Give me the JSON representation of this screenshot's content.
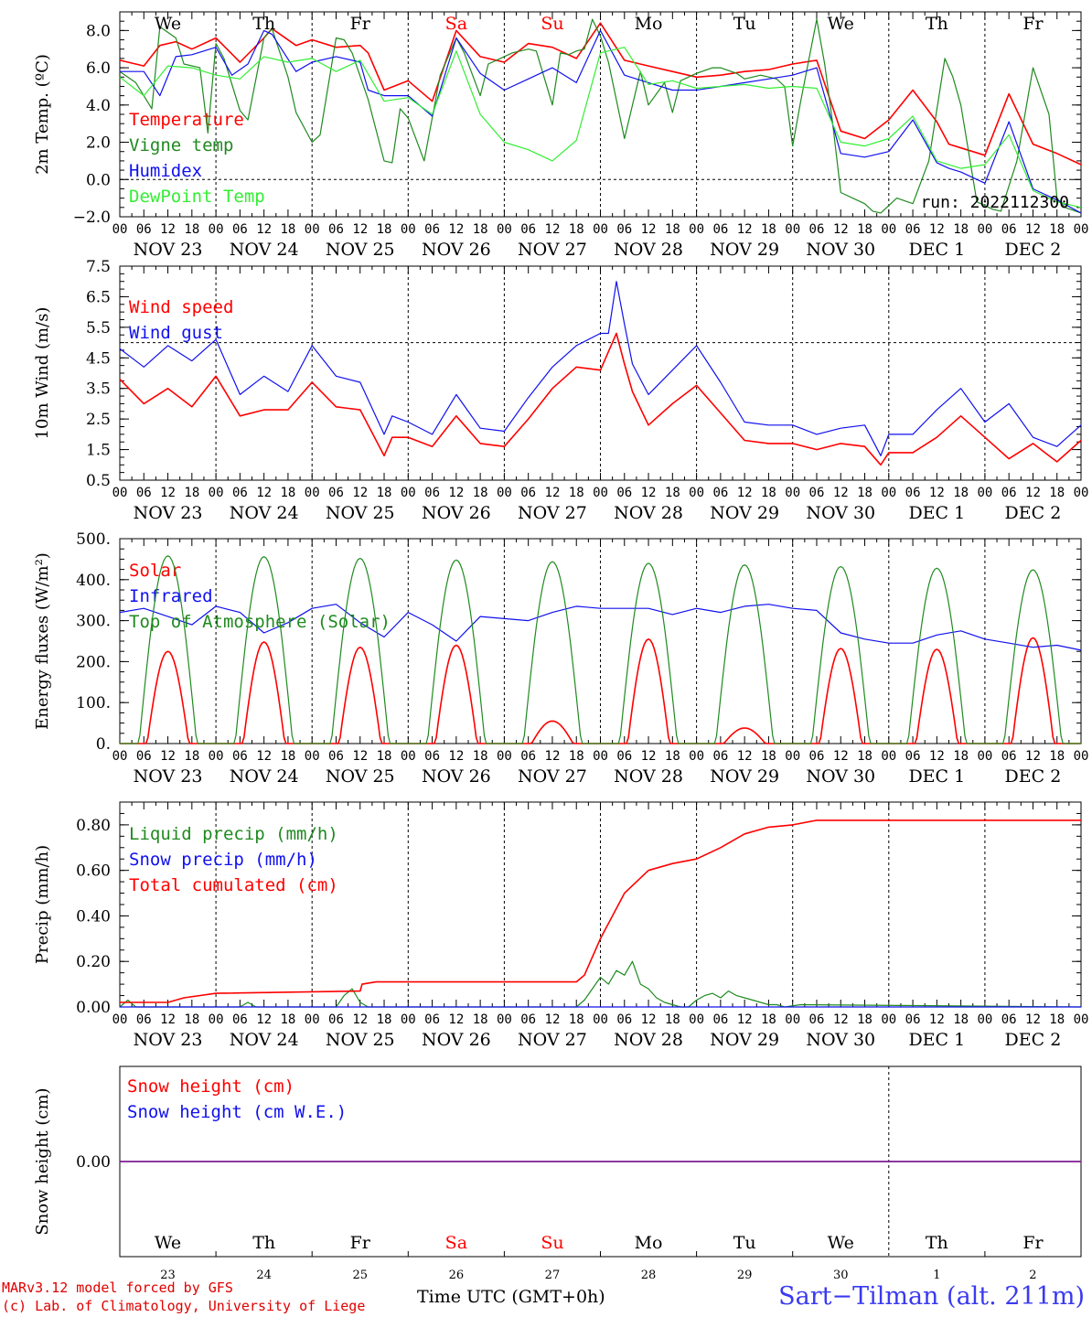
{
  "colors": {
    "red": "#ff0000",
    "darkgreen": "#1f8a1f",
    "blue": "#1010ee",
    "lightgreen": "#33ee33",
    "purple": "#7a2aa0",
    "weekend": "#ff0000"
  },
  "days": [
    "We",
    "Th",
    "Fr",
    "Sa",
    "Su",
    "Mo",
    "Tu",
    "We",
    "Th",
    "Fr"
  ],
  "weekend_days": [
    3,
    4
  ],
  "dates": [
    "NOV 23",
    "NOV 24",
    "NOV 25",
    "NOV 26",
    "NOV 27",
    "NOV 28",
    "NOV 29",
    "NOV 30",
    "DEC  1",
    "DEC  2"
  ],
  "day_numbers": [
    "23",
    "24",
    "25",
    "26",
    "27",
    "28",
    "29",
    "30",
    "1",
    "2"
  ],
  "hour_labels": [
    "00",
    "06",
    "12",
    "18"
  ],
  "final_hour_label": "00",
  "footer": {
    "credit_line1": "MARv3.12 model forced by GFS",
    "credit_line2": "(c) Lab. of Climatology, University of Liege",
    "axis_title": "Time UTC (GMT+0h)",
    "station": "Sart−Tilman (alt. 211m)"
  },
  "chart_data": [
    {
      "type": "line",
      "ylabel": "2m Temp. (ºC)",
      "ylim": [
        -2,
        9
      ],
      "yticks": [
        -2,
        0,
        2,
        4,
        6,
        8
      ],
      "yticklabels": [
        "−2.0",
        "0.0",
        "2.0",
        "4.0",
        "6.0",
        "8.0"
      ],
      "dashed_y": 0,
      "run_label": "run: 2022112300",
      "x_unit": "hours since 2022-11-23 00 UTC",
      "series": [
        {
          "name": "Temperature",
          "color": "red",
          "x": [
            0,
            6,
            10,
            14,
            18,
            24,
            30,
            36,
            38,
            44,
            48,
            54,
            60,
            62,
            66,
            72,
            78,
            84,
            90,
            96,
            102,
            108,
            114,
            120,
            126,
            132,
            138,
            144,
            150,
            156,
            162,
            168,
            174,
            180,
            186,
            192,
            198,
            204,
            207,
            210,
            216,
            222,
            228,
            234,
            240
          ],
          "y": [
            6.4,
            6.1,
            7.2,
            7.4,
            7.0,
            7.6,
            6.3,
            7.6,
            8.1,
            7.2,
            7.5,
            7.1,
            7.2,
            6.8,
            4.8,
            5.3,
            4.2,
            8.0,
            6.6,
            6.3,
            7.3,
            7.1,
            6.5,
            8.4,
            6.4,
            6.1,
            5.8,
            5.5,
            5.6,
            5.8,
            5.9,
            6.2,
            6.4,
            2.6,
            2.2,
            3.2,
            4.8,
            3.1,
            1.9,
            1.7,
            1.3,
            4.6,
            1.9,
            1.4,
            0.8
          ]
        },
        {
          "name": "Vigne temp",
          "color": "darkgreen",
          "x": [
            0,
            4,
            8,
            10,
            14,
            16,
            20,
            22,
            24,
            26,
            30,
            32,
            36,
            38,
            42,
            44,
            48,
            50,
            54,
            56,
            58,
            62,
            66,
            68,
            70,
            72,
            76,
            80,
            84,
            86,
            90,
            92,
            96,
            98,
            102,
            104,
            108,
            110,
            112,
            114,
            116,
            118,
            120,
            122,
            126,
            130,
            132,
            136,
            138,
            140,
            144,
            148,
            150,
            154,
            156,
            160,
            164,
            166,
            168,
            170,
            174,
            176,
            178,
            180,
            184,
            186,
            188,
            190,
            194,
            198,
            202,
            206,
            208,
            210,
            214,
            218,
            220,
            224,
            228,
            232,
            234,
            236,
            240
          ],
          "y": [
            5.8,
            5.2,
            3.8,
            8.2,
            7.6,
            6.2,
            6.0,
            2.5,
            7.3,
            6.5,
            3.7,
            3.2,
            7.6,
            8.1,
            5.5,
            3.6,
            2.0,
            2.4,
            7.6,
            7.5,
            6.8,
            4.3,
            1.0,
            0.9,
            3.8,
            3.3,
            1.0,
            5.6,
            7.6,
            6.8,
            4.5,
            6.2,
            6.6,
            6.8,
            7.0,
            6.9,
            4.0,
            6.8,
            6.7,
            6.9,
            7.0,
            8.6,
            7.7,
            6.3,
            2.2,
            5.8,
            4.0,
            5.2,
            3.6,
            5.3,
            5.7,
            6.0,
            6.0,
            5.7,
            5.4,
            5.6,
            5.4,
            5.0,
            1.8,
            4.2,
            8.6,
            6.2,
            3.0,
            -0.7,
            -1.1,
            -1.3,
            -1.7,
            -1.8,
            -1.0,
            -1.3,
            1.0,
            6.5,
            5.5,
            4.0,
            -1.2,
            -1.6,
            -1.7,
            1.0,
            6.0,
            3.5,
            -1.0,
            -1.5,
            -1.8
          ]
        },
        {
          "name": "Humidex",
          "color": "blue",
          "x": [
            0,
            6,
            10,
            14,
            18,
            24,
            28,
            32,
            36,
            38,
            44,
            48,
            54,
            60,
            62,
            66,
            72,
            78,
            84,
            90,
            96,
            102,
            108,
            114,
            120,
            126,
            132,
            138,
            144,
            150,
            156,
            162,
            168,
            174,
            180,
            186,
            192,
            198,
            204,
            207,
            210,
            216,
            222,
            228,
            234,
            240
          ],
          "y": [
            5.8,
            5.8,
            4.5,
            6.6,
            6.7,
            7.1,
            5.6,
            6.2,
            8.0,
            7.8,
            5.8,
            6.3,
            6.6,
            6.3,
            4.8,
            4.5,
            4.5,
            3.4,
            7.6,
            5.7,
            4.8,
            5.4,
            6.0,
            5.2,
            8.0,
            5.6,
            5.2,
            4.8,
            4.8,
            5.0,
            5.2,
            5.4,
            5.6,
            6.0,
            1.4,
            1.2,
            1.5,
            3.2,
            0.9,
            0.6,
            0.4,
            -0.2,
            3.1,
            -0.5,
            -1.1,
            -1.8
          ]
        },
        {
          "name": "DewPoint Temp",
          "color": "lightgreen",
          "x": [
            0,
            6,
            12,
            18,
            24,
            30,
            36,
            42,
            48,
            54,
            60,
            66,
            72,
            78,
            84,
            90,
            96,
            102,
            108,
            114,
            120,
            126,
            132,
            138,
            144,
            150,
            156,
            162,
            168,
            174,
            180,
            186,
            192,
            198,
            204,
            210,
            216,
            222,
            228,
            234,
            240
          ],
          "y": [
            5.5,
            4.5,
            6.1,
            6.0,
            5.6,
            5.4,
            6.6,
            6.3,
            6.5,
            5.8,
            6.4,
            4.2,
            4.4,
            3.5,
            6.9,
            3.5,
            2.0,
            1.6,
            1.0,
            2.1,
            6.8,
            7.1,
            5.1,
            5.3,
            4.9,
            5.0,
            5.1,
            4.9,
            5.0,
            4.9,
            2.0,
            1.8,
            2.2,
            3.4,
            1.0,
            0.6,
            0.8,
            2.4,
            -0.6,
            -1.2,
            -1.5
          ]
        }
      ]
    },
    {
      "type": "line",
      "ylabel": "10m Wind (m/s)",
      "ylim": [
        0.5,
        7.5
      ],
      "yticks": [
        0.5,
        1.5,
        2.5,
        3.5,
        4.5,
        5.5,
        6.5,
        7.5
      ],
      "yticklabels": [
        "0.5",
        "1.5",
        "2.5",
        "3.5",
        "4.5",
        "5.5",
        "6.5",
        "7.5"
      ],
      "dashed_y": 5.0,
      "x_unit": "hours since 2022-11-23 00 UTC",
      "series": [
        {
          "name": "Wind speed",
          "color": "red",
          "x": [
            0,
            6,
            12,
            18,
            24,
            30,
            36,
            42,
            48,
            54,
            60,
            66,
            68,
            72,
            78,
            84,
            90,
            96,
            102,
            108,
            114,
            120,
            124,
            126,
            128,
            132,
            138,
            144,
            150,
            156,
            162,
            168,
            174,
            180,
            186,
            190,
            192,
            198,
            204,
            210,
            216,
            222,
            228,
            234,
            240
          ],
          "y": [
            3.8,
            3.0,
            3.5,
            2.9,
            3.9,
            2.6,
            2.8,
            2.8,
            3.7,
            2.9,
            2.8,
            1.3,
            1.9,
            1.9,
            1.6,
            2.6,
            1.7,
            1.6,
            2.5,
            3.5,
            4.2,
            4.1,
            5.3,
            4.3,
            3.4,
            2.3,
            3.0,
            3.6,
            2.7,
            1.8,
            1.7,
            1.7,
            1.5,
            1.7,
            1.6,
            1.0,
            1.4,
            1.4,
            1.9,
            2.6,
            1.9,
            1.2,
            1.7,
            1.1,
            1.8
          ]
        },
        {
          "name": "Wind gust",
          "color": "blue",
          "x": [
            0,
            6,
            12,
            18,
            24,
            30,
            36,
            42,
            48,
            54,
            60,
            66,
            68,
            72,
            78,
            84,
            90,
            96,
            102,
            108,
            114,
            120,
            122,
            124,
            126,
            128,
            132,
            138,
            144,
            150,
            156,
            162,
            168,
            174,
            180,
            186,
            190,
            192,
            198,
            204,
            210,
            216,
            222,
            228,
            234,
            240
          ],
          "y": [
            4.8,
            4.2,
            4.9,
            4.4,
            5.1,
            3.3,
            3.9,
            3.4,
            4.9,
            3.9,
            3.7,
            2.0,
            2.6,
            2.4,
            2.0,
            3.3,
            2.2,
            2.1,
            3.2,
            4.2,
            4.9,
            5.3,
            5.3,
            7.0,
            5.6,
            4.3,
            3.3,
            4.1,
            4.9,
            3.7,
            2.4,
            2.3,
            2.3,
            2.0,
            2.2,
            2.3,
            1.3,
            2.0,
            2.0,
            2.8,
            3.5,
            2.4,
            3.0,
            1.9,
            1.6,
            2.3
          ]
        }
      ]
    },
    {
      "type": "line",
      "ylabel": "Energy fluxes (W/m²)",
      "ylim": [
        0,
        500
      ],
      "yticks": [
        0,
        100,
        200,
        300,
        400,
        500
      ],
      "yticklabels": [
        "0.",
        "100.",
        "200.",
        "300.",
        "400.",
        "500."
      ],
      "x_unit": "hours since 2022-11-23 00 UTC",
      "series": [
        {
          "name": "Solar",
          "color": "red",
          "daily_peaks": [
            225,
            248,
            235,
            240,
            55,
            255,
            38,
            232,
            230,
            258
          ]
        },
        {
          "name": "Infrared",
          "color": "blue",
          "x": [
            0,
            6,
            12,
            18,
            24,
            30,
            36,
            42,
            48,
            54,
            60,
            66,
            72,
            78,
            84,
            90,
            96,
            102,
            108,
            114,
            120,
            126,
            132,
            138,
            144,
            150,
            156,
            162,
            168,
            174,
            180,
            186,
            192,
            198,
            204,
            210,
            216,
            222,
            228,
            234,
            240
          ],
          "y": [
            320,
            330,
            310,
            290,
            335,
            320,
            270,
            295,
            330,
            340,
            295,
            260,
            320,
            290,
            250,
            310,
            305,
            300,
            320,
            335,
            330,
            330,
            330,
            315,
            330,
            320,
            335,
            340,
            330,
            325,
            270,
            255,
            245,
            245,
            265,
            275,
            255,
            245,
            235,
            240,
            228
          ]
        },
        {
          "name": "Top of Atmosphere (Solar)",
          "color": "darkgreen",
          "daily_peaks": [
            458,
            456,
            452,
            448,
            444,
            440,
            436,
            432,
            428,
            424
          ]
        }
      ]
    },
    {
      "type": "line",
      "ylabel": "Precip (mm/h)",
      "ylim": [
        0,
        0.9
      ],
      "yticks": [
        0,
        0.2,
        0.4,
        0.6,
        0.8
      ],
      "yticklabels": [
        "0.00",
        "0.20",
        "0.40",
        "0.60",
        "0.80"
      ],
      "x_unit": "hours since 2022-11-23 00 UTC",
      "series": [
        {
          "name": "Liquid precip (mm/h)",
          "color": "darkgreen",
          "x": [
            0,
            2,
            4,
            6,
            30,
            32,
            34,
            54,
            56,
            58,
            60,
            62,
            114,
            116,
            118,
            120,
            122,
            124,
            126,
            128,
            130,
            132,
            134,
            136,
            138,
            140,
            142,
            144,
            146,
            148,
            150,
            152,
            154,
            156,
            158,
            160,
            162,
            164,
            166,
            170,
            240
          ],
          "y": [
            0,
            0.03,
            0,
            0,
            0,
            0.02,
            0,
            0,
            0.05,
            0.08,
            0.02,
            0,
            0,
            0.03,
            0.08,
            0.13,
            0.1,
            0.16,
            0.14,
            0.2,
            0.1,
            0.08,
            0.04,
            0.02,
            0.01,
            0,
            0,
            0.03,
            0.05,
            0.06,
            0.04,
            0.07,
            0.05,
            0.04,
            0.03,
            0.02,
            0.01,
            0.01,
            0,
            0.01,
            0
          ]
        },
        {
          "name": "Snow precip (mm/h)",
          "color": "blue",
          "x": [
            0,
            240
          ],
          "y": [
            0,
            0
          ]
        },
        {
          "name": "Total cumulated (cm)",
          "color": "red",
          "x": [
            0,
            12,
            16,
            24,
            60,
            60.5,
            64,
            114,
            116,
            120,
            126,
            132,
            138,
            144,
            150,
            156,
            162,
            168,
            174,
            180,
            186,
            192,
            198,
            204,
            210,
            216,
            222,
            228,
            234,
            240
          ],
          "y": [
            0.02,
            0.02,
            0.04,
            0.06,
            0.07,
            0.1,
            0.11,
            0.11,
            0.14,
            0.3,
            0.5,
            0.6,
            0.63,
            0.65,
            0.7,
            0.76,
            0.79,
            0.8,
            0.82,
            0.82,
            0.82,
            0.82,
            0.82,
            0.82,
            0.82,
            0.82,
            0.82,
            0.82,
            0.82,
            0.82
          ]
        }
      ]
    },
    {
      "type": "line",
      "ylabel": "Snow height (cm)",
      "ylim": [
        -1,
        1
      ],
      "yticks": [
        0
      ],
      "yticklabels": [
        "0.00"
      ],
      "x_unit": "hours since 2022-11-23 00 UTC",
      "series": [
        {
          "name": "Snow height (cm)",
          "color": "red",
          "x": [
            0,
            240
          ],
          "y": [
            0,
            0
          ]
        },
        {
          "name": "Snow height (cm W.E.)",
          "color": "blue",
          "x": [
            0,
            240
          ],
          "y": [
            0,
            0
          ]
        }
      ]
    }
  ]
}
